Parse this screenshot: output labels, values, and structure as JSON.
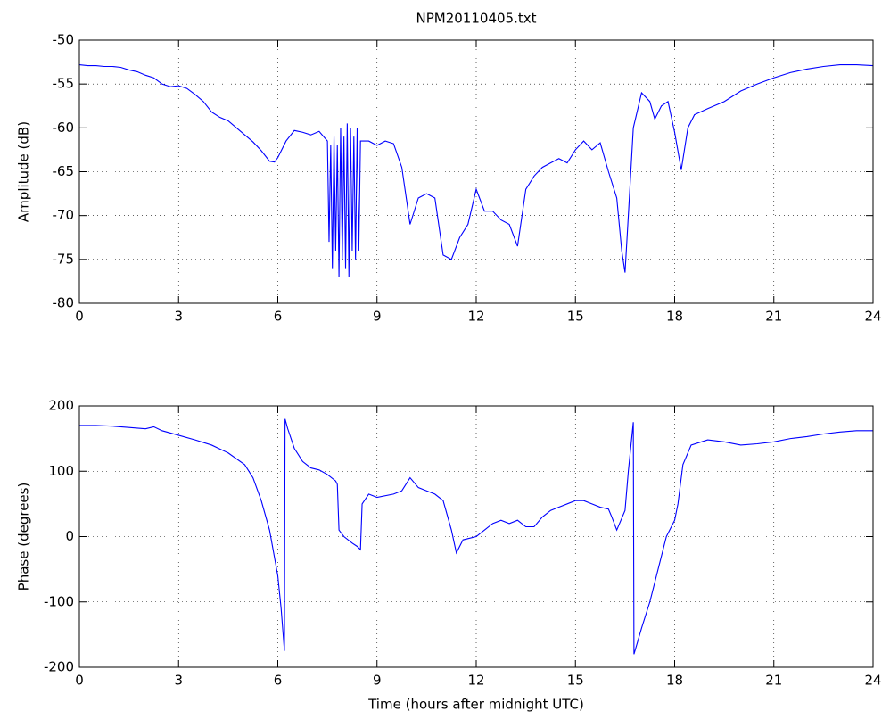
{
  "chart_data": [
    {
      "type": "line",
      "title": "NPM20110405.txt",
      "y_label": "Amplitude (dB)",
      "color": "#0000ff",
      "grid": true,
      "xlim": [
        0,
        24
      ],
      "xticks": [
        0,
        3,
        6,
        9,
        12,
        15,
        18,
        21,
        24
      ],
      "ylim": [
        -80,
        -50
      ],
      "yticks": [
        -50,
        -55,
        -60,
        -65,
        -70,
        -75,
        -80
      ],
      "x": [
        0,
        0.25,
        0.5,
        0.75,
        1.0,
        1.25,
        1.5,
        1.75,
        2.0,
        2.25,
        2.5,
        2.75,
        3.0,
        3.25,
        3.5,
        3.75,
        4.0,
        4.25,
        4.5,
        4.75,
        5.0,
        5.25,
        5.5,
        5.75,
        5.9,
        6.0,
        6.25,
        6.5,
        6.75,
        7.0,
        7.25,
        7.5,
        7.55,
        7.6,
        7.65,
        7.7,
        7.75,
        7.8,
        7.85,
        7.9,
        7.95,
        8.0,
        8.05,
        8.1,
        8.15,
        8.2,
        8.25,
        8.3,
        8.35,
        8.4,
        8.45,
        8.5,
        8.75,
        9.0,
        9.25,
        9.5,
        9.75,
        10.0,
        10.25,
        10.5,
        10.75,
        11.0,
        11.25,
        11.5,
        11.75,
        12.0,
        12.25,
        12.5,
        12.75,
        13.0,
        13.25,
        13.5,
        13.75,
        14.0,
        14.25,
        14.5,
        14.75,
        15.0,
        15.25,
        15.5,
        15.75,
        16.0,
        16.25,
        16.4,
        16.5,
        16.6,
        16.75,
        17.0,
        17.25,
        17.4,
        17.6,
        17.8,
        18.0,
        18.2,
        18.4,
        18.6,
        19.0,
        19.5,
        20.0,
        20.5,
        21.0,
        21.5,
        22.0,
        22.5,
        23.0,
        23.5,
        24.0
      ],
      "values": [
        -52.8,
        -52.9,
        -52.9,
        -53.0,
        -53.0,
        -53.1,
        -53.4,
        -53.6,
        -54.0,
        -54.3,
        -55.0,
        -55.3,
        -55.2,
        -55.5,
        -56.2,
        -57.0,
        -58.2,
        -58.8,
        -59.2,
        -60.0,
        -60.8,
        -61.6,
        -62.6,
        -63.8,
        -63.9,
        -63.4,
        -61.5,
        -60.3,
        -60.5,
        -60.8,
        -60.4,
        -61.5,
        -73,
        -62,
        -76,
        -61,
        -74,
        -62,
        -77,
        -60,
        -75,
        -61,
        -76,
        -59.5,
        -77,
        -60,
        -74,
        -61,
        -75,
        -60,
        -74,
        -61.5,
        -61.5,
        -62.0,
        -61.5,
        -61.8,
        -64.5,
        -71.0,
        -68.0,
        -67.5,
        -68.0,
        -74.5,
        -75.0,
        -72.5,
        -71.0,
        -67.0,
        -69.5,
        -69.5,
        -70.5,
        -71.0,
        -73.5,
        -67.0,
        -65.5,
        -64.5,
        -64.0,
        -63.5,
        -64.0,
        -62.5,
        -61.5,
        -62.5,
        -61.7,
        -65.0,
        -68.0,
        -74.0,
        -76.5,
        -70.0,
        -60.0,
        -56.0,
        -57.0,
        -59.0,
        -57.5,
        -57.0,
        -60.5,
        -64.8,
        -60.0,
        -58.5,
        -57.8,
        -57.0,
        -55.8,
        -55.0,
        -54.3,
        -53.7,
        -53.3,
        -53.0,
        -52.8,
        -52.8,
        -52.9
      ]
    },
    {
      "type": "line",
      "x_label": "Time (hours after midnight UTC)",
      "y_label": "Phase (degrees)",
      "color": "#0000ff",
      "grid": true,
      "xlim": [
        0,
        24
      ],
      "xticks": [
        0,
        3,
        6,
        9,
        12,
        15,
        18,
        21,
        24
      ],
      "ylim": [
        -200,
        200
      ],
      "yticks": [
        200,
        100,
        0,
        -100,
        -200
      ],
      "x": [
        0,
        0.5,
        1.0,
        1.5,
        2.0,
        2.25,
        2.5,
        3.0,
        3.5,
        4.0,
        4.5,
        5.0,
        5.25,
        5.5,
        5.75,
        6.0,
        6.1,
        6.2,
        6.22,
        6.3,
        6.5,
        6.75,
        7.0,
        7.25,
        7.5,
        7.75,
        7.8,
        7.85,
        8.0,
        8.25,
        8.4,
        8.5,
        8.55,
        8.75,
        9.0,
        9.5,
        9.75,
        10.0,
        10.25,
        10.5,
        10.75,
        11.0,
        11.25,
        11.4,
        11.6,
        12.0,
        12.25,
        12.5,
        12.75,
        13.0,
        13.25,
        13.5,
        13.75,
        14.0,
        14.25,
        14.5,
        15.0,
        15.25,
        15.5,
        15.75,
        16.0,
        16.1,
        16.25,
        16.5,
        16.6,
        16.75,
        16.77,
        17.0,
        17.25,
        17.5,
        17.75,
        18.0,
        18.1,
        18.25,
        18.5,
        19.0,
        19.5,
        20.0,
        20.5,
        21.0,
        21.5,
        22.0,
        22.5,
        23.0,
        23.5,
        24.0
      ],
      "values": [
        170,
        170,
        169,
        167,
        165,
        168,
        162,
        155,
        148,
        140,
        128,
        110,
        90,
        55,
        10,
        -60,
        -110,
        -175,
        180,
        165,
        135,
        115,
        105,
        102,
        95,
        85,
        80,
        10,
        0,
        -10,
        -15,
        -20,
        50,
        65,
        60,
        65,
        70,
        90,
        75,
        70,
        65,
        55,
        10,
        -25,
        -5,
        0,
        10,
        20,
        25,
        20,
        25,
        15,
        15,
        30,
        40,
        45,
        55,
        55,
        50,
        45,
        42,
        30,
        10,
        40,
        100,
        175,
        -180,
        -140,
        -100,
        -50,
        0,
        25,
        50,
        110,
        140,
        148,
        145,
        140,
        142,
        145,
        150,
        153,
        157,
        160,
        162,
        162
      ]
    }
  ]
}
